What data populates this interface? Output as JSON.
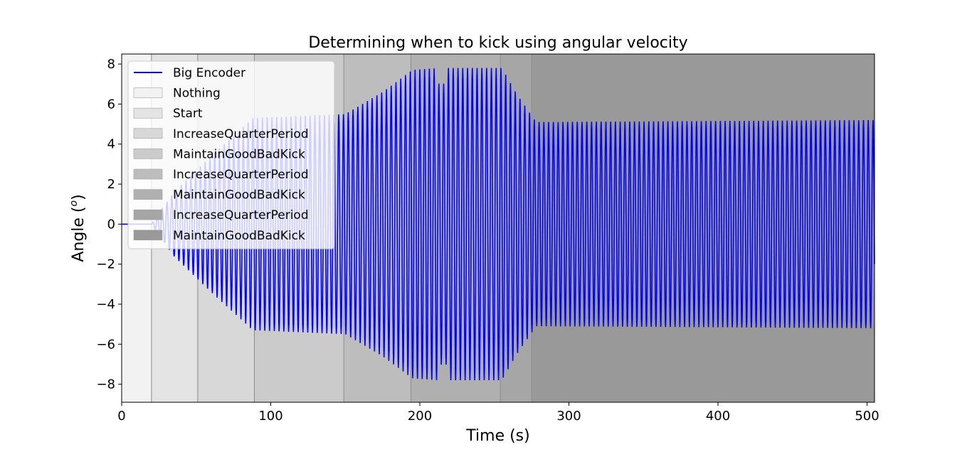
{
  "chart_data": {
    "type": "line",
    "title": "Determining when to kick using angular velocity",
    "xlabel": "Time (s)",
    "ylabel_main": "Angle (",
    "ylabel_sup": "o",
    "ylabel_end": ")",
    "xlim": [
      0,
      505
    ],
    "ylim": [
      -8.9,
      8.5
    ],
    "x_ticks": [
      0,
      100,
      200,
      300,
      400,
      500
    ],
    "y_ticks": [
      -8,
      -6,
      -4,
      -2,
      0,
      2,
      4,
      6,
      8
    ],
    "y_tick_labels": [
      "−8",
      "−6",
      "−4",
      "−2",
      "0",
      "2",
      "4",
      "6",
      "8"
    ],
    "grid": false,
    "legend_position": "top-left",
    "line_series": {
      "name": "Big Encoder",
      "color": "#0000ff",
      "start_time": 20,
      "period_s": 3.2,
      "envelope": [
        {
          "t": 0,
          "amp": 0
        },
        {
          "t": 20,
          "amp": 0
        },
        {
          "t": 35,
          "amp": 1.6
        },
        {
          "t": 60,
          "amp": 3.4
        },
        {
          "t": 88,
          "amp": 5.3
        },
        {
          "t": 150,
          "amp": 5.5
        },
        {
          "t": 175,
          "amp": 6.6
        },
        {
          "t": 195,
          "amp": 7.7
        },
        {
          "t": 212,
          "amp": 7.8
        },
        {
          "t": 255,
          "amp": 7.8
        },
        {
          "t": 265,
          "amp": 6.5
        },
        {
          "t": 278,
          "amp": 5.1
        },
        {
          "t": 505,
          "amp": 5.2
        }
      ]
    },
    "phases": [
      {
        "name": "Nothing",
        "start": 0,
        "end": 20,
        "color": "#f2f2f2"
      },
      {
        "name": "Start",
        "start": 20,
        "end": 51,
        "color": "#e4e4e4"
      },
      {
        "name": "IncreaseQuarterPeriod",
        "start": 51,
        "end": 89,
        "color": "#d8d8d8"
      },
      {
        "name": "MaintainGoodBadKick",
        "start": 89,
        "end": 149,
        "color": "#cbcbcb"
      },
      {
        "name": "IncreaseQuarterPeriod",
        "start": 149,
        "end": 194,
        "color": "#bdbdbd"
      },
      {
        "name": "MaintainGoodBadKick",
        "start": 194,
        "end": 254,
        "color": "#b0b0b0"
      },
      {
        "name": "IncreaseQuarterPeriod",
        "start": 254,
        "end": 275,
        "color": "#a6a6a6"
      },
      {
        "name": "MaintainGoodBadKick",
        "start": 275,
        "end": 505,
        "color": "#999999"
      }
    ]
  }
}
